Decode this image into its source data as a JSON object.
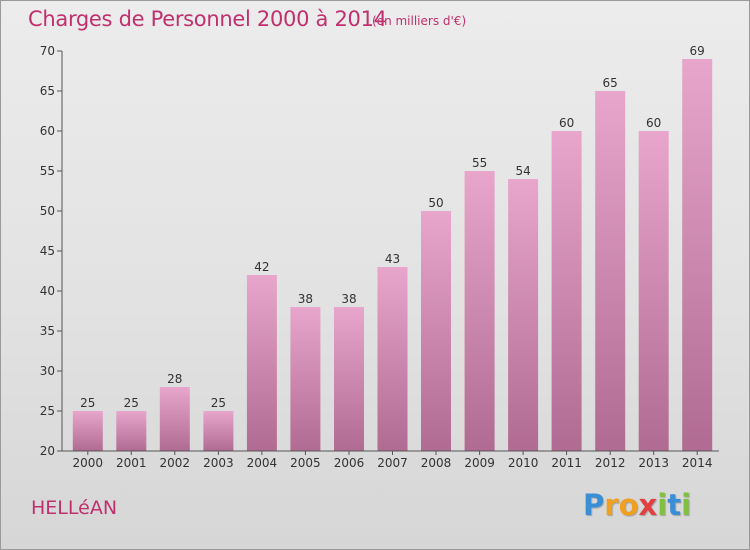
{
  "title": "Charges de Personnel 2000 à 2014",
  "subtitle": "(en milliers d'€)",
  "place": "HELLéAN",
  "logo": {
    "letters": [
      "P",
      "r",
      "o",
      "x",
      "i",
      "t",
      "i"
    ],
    "colors": [
      "#3a8ed6",
      "#f0a020",
      "#f0a020",
      "#e04040",
      "#80c040",
      "#3a8ed6",
      "#80c040"
    ]
  },
  "colors": {
    "title": "#c0306f",
    "bar_top": "#e8a6cc",
    "bar_bottom": "#b06b92",
    "axis": "#555555"
  },
  "chart_data": {
    "type": "bar",
    "title": "Charges de Personnel 2000 à 2014",
    "subtitle": "(en milliers d'€)",
    "categories": [
      "2000",
      "2001",
      "2002",
      "2003",
      "2004",
      "2005",
      "2006",
      "2007",
      "2008",
      "2009",
      "2010",
      "2011",
      "2012",
      "2013",
      "2014"
    ],
    "values": [
      25,
      25,
      28,
      25,
      42,
      38,
      38,
      43,
      50,
      55,
      54,
      60,
      65,
      60,
      69
    ],
    "ylim": [
      20,
      70
    ],
    "yticks": [
      20,
      25,
      30,
      35,
      40,
      45,
      50,
      55,
      60,
      65,
      70
    ],
    "grid": false,
    "data_labels": true
  }
}
